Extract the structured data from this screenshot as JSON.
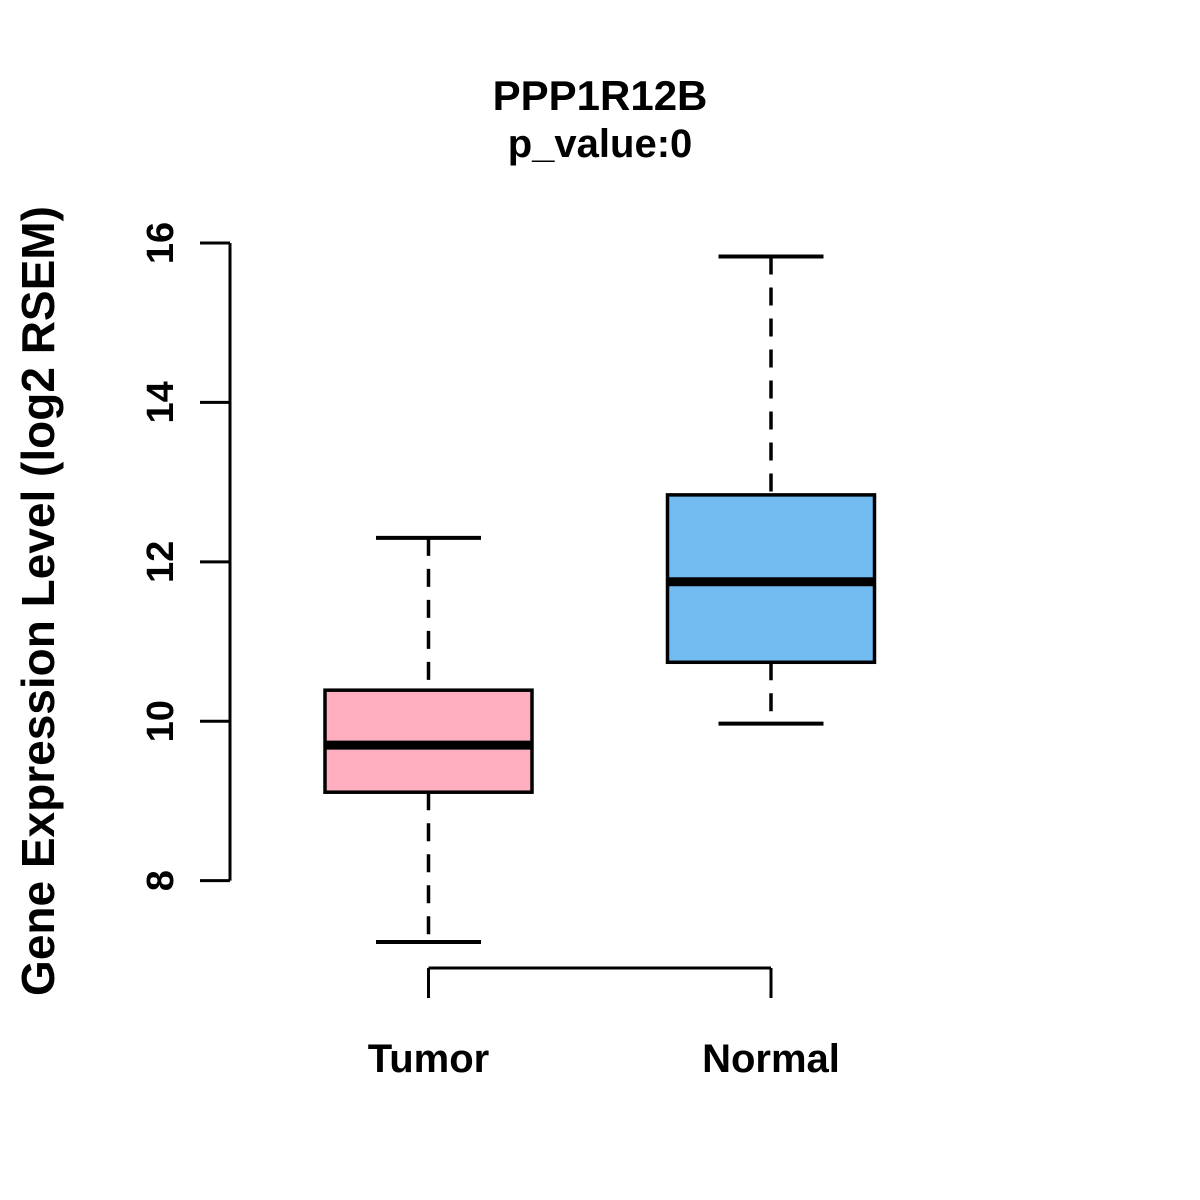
{
  "header": {
    "title": "PPP1R12B",
    "subtitle": "p_value:0"
  },
  "chart_data": {
    "type": "boxplot",
    "title": "PPP1R12B",
    "subtitle": "p_value:0",
    "xlabel": "",
    "ylabel": "Gene Expression Level (log2 RSEM)",
    "ylim": [
      8,
      16
    ],
    "yticks": [
      8,
      10,
      12,
      14,
      16
    ],
    "grid": false,
    "legend": "none",
    "categories": [
      "Tumor",
      "Normal"
    ],
    "series": [
      {
        "name": "Tumor",
        "color": "#FFAEC0",
        "whisker_low": 7.23,
        "q1": 9.11,
        "median": 9.7,
        "q3": 10.39,
        "whisker_high": 12.3
      },
      {
        "name": "Normal",
        "color": "#72BCF2",
        "whisker_low": 9.97,
        "q1": 10.74,
        "median": 11.75,
        "q3": 12.84,
        "whisker_high": 15.83
      }
    ],
    "colors": {
      "axis": "#000000",
      "box_border": "#000000",
      "median_line": "#000000",
      "whisker": "#000000",
      "text": "#000000",
      "background": "#FFFFFF"
    }
  }
}
